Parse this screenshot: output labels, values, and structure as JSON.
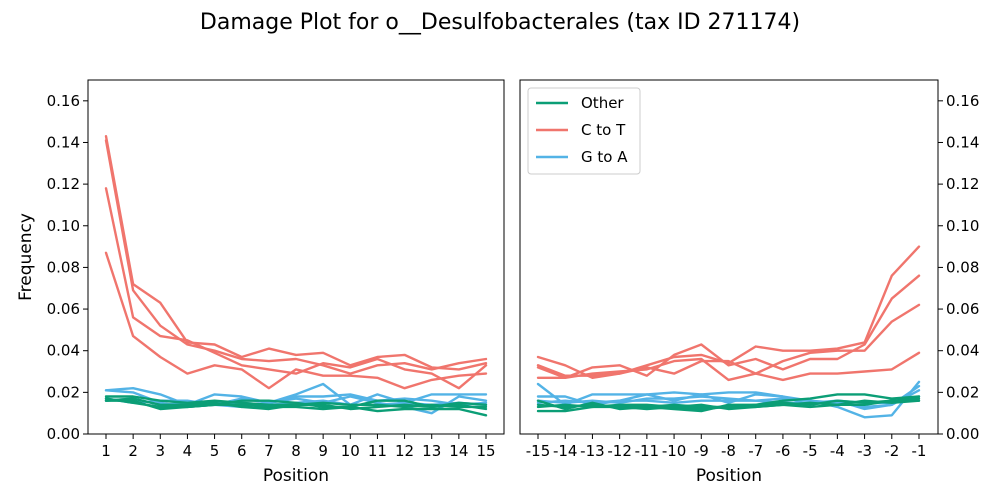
{
  "chart_data": {
    "type": "line",
    "title": "Damage Plot for o__Desulfobacterales (tax ID 271174)",
    "colors": {
      "Other": "#0b9e76",
      "C to T": "#f0756d",
      "G to A": "#53b3e6"
    },
    "legend": {
      "placement": "top-left of right panel",
      "entries": [
        "Other",
        "C to T",
        "G to A"
      ]
    },
    "panels": [
      {
        "name": "left",
        "xlabel": "Position",
        "ylabel": "Frequency",
        "x_ticks": [
          "1",
          "2",
          "3",
          "4",
          "5",
          "6",
          "7",
          "8",
          "9",
          "10",
          "11",
          "12",
          "13",
          "14",
          "15"
        ],
        "ylim": [
          0,
          0.17
        ],
        "y_ticks": [
          "0.00",
          "0.02",
          "0.04",
          "0.06",
          "0.08",
          "0.10",
          "0.12",
          "0.14",
          "0.16"
        ],
        "series": [
          {
            "group": "C to T",
            "values": [
              0.143,
              0.072,
              0.063,
              0.044,
              0.043,
              0.037,
              0.041,
              0.038,
              0.039,
              0.033,
              0.037,
              0.038,
              0.032,
              0.031,
              0.034
            ]
          },
          {
            "group": "C to T",
            "values": [
              0.141,
              0.069,
              0.052,
              0.043,
              0.04,
              0.036,
              0.035,
              0.036,
              0.033,
              0.029,
              0.033,
              0.034,
              0.031,
              0.034,
              0.036
            ]
          },
          {
            "group": "C to T",
            "values": [
              0.118,
              0.056,
              0.047,
              0.045,
              0.039,
              0.033,
              0.031,
              0.029,
              0.034,
              0.032,
              0.036,
              0.031,
              0.029,
              0.022,
              0.033
            ]
          },
          {
            "group": "C to T",
            "values": [
              0.087,
              0.047,
              0.037,
              0.029,
              0.033,
              0.031,
              0.022,
              0.031,
              0.028,
              0.028,
              0.027,
              0.022,
              0.026,
              0.028,
              0.029
            ]
          },
          {
            "group": "G to A",
            "values": [
              0.021,
              0.022,
              0.019,
              0.014,
              0.019,
              0.018,
              0.015,
              0.019,
              0.024,
              0.014,
              0.019,
              0.015,
              0.019,
              0.019,
              0.019
            ]
          },
          {
            "group": "G to A",
            "values": [
              0.021,
              0.02,
              0.015,
              0.013,
              0.014,
              0.013,
              0.015,
              0.017,
              0.015,
              0.018,
              0.015,
              0.013,
              0.01,
              0.018,
              0.016
            ]
          },
          {
            "group": "G to A",
            "values": [
              0.017,
              0.015,
              0.016,
              0.016,
              0.014,
              0.017,
              0.015,
              0.018,
              0.018,
              0.019,
              0.016,
              0.017,
              0.016,
              0.014,
              0.015
            ]
          },
          {
            "group": "G to A",
            "values": [
              0.016,
              0.017,
              0.014,
              0.015,
              0.015,
              0.015,
              0.014,
              0.015,
              0.016,
              0.014,
              0.014,
              0.015,
              0.014,
              0.015,
              0.014
            ]
          },
          {
            "group": "Other",
            "values": [
              0.018,
              0.018,
              0.016,
              0.015,
              0.016,
              0.015,
              0.014,
              0.014,
              0.015,
              0.014,
              0.014,
              0.013,
              0.014,
              0.013,
              0.013
            ]
          },
          {
            "group": "Other",
            "values": [
              0.016,
              0.016,
              0.012,
              0.013,
              0.014,
              0.016,
              0.016,
              0.015,
              0.013,
              0.013,
              0.016,
              0.016,
              0.013,
              0.014,
              0.012
            ]
          },
          {
            "group": "Other",
            "values": [
              0.017,
              0.015,
              0.013,
              0.013,
              0.014,
              0.014,
              0.013,
              0.013,
              0.012,
              0.013,
              0.011,
              0.012,
              0.012,
              0.012,
              0.009
            ]
          },
          {
            "group": "Other",
            "values": [
              0.016,
              0.017,
              0.014,
              0.014,
              0.015,
              0.013,
              0.012,
              0.014,
              0.014,
              0.012,
              0.013,
              0.014,
              0.013,
              0.015,
              0.014
            ]
          }
        ]
      },
      {
        "name": "right",
        "xlabel": "Position",
        "ylabel": "",
        "x_ticks": [
          "-15",
          "-14",
          "-13",
          "-12",
          "-11",
          "-10",
          "-9",
          "-8",
          "-7",
          "-6",
          "-5",
          "-4",
          "-3",
          "-2",
          "-1"
        ],
        "ylim": [
          0,
          0.17
        ],
        "y_ticks": [
          "0.00",
          "0.02",
          "0.04",
          "0.06",
          "0.08",
          "0.10",
          "0.12",
          "0.14",
          "0.16"
        ],
        "series": [
          {
            "group": "C to T",
            "values": [
              0.037,
              0.033,
              0.027,
              0.029,
              0.033,
              0.037,
              0.038,
              0.034,
              0.042,
              0.04,
              0.04,
              0.041,
              0.044,
              0.076,
              0.09
            ]
          },
          {
            "group": "C to T",
            "values": [
              0.032,
              0.027,
              0.032,
              0.033,
              0.028,
              0.038,
              0.043,
              0.033,
              0.036,
              0.031,
              0.036,
              0.036,
              0.043,
              0.065,
              0.076
            ]
          },
          {
            "group": "C to T",
            "values": [
              0.033,
              0.028,
              0.028,
              0.029,
              0.032,
              0.029,
              0.035,
              0.035,
              0.029,
              0.035,
              0.039,
              0.04,
              0.04,
              0.054,
              0.062
            ]
          },
          {
            "group": "C to T",
            "values": [
              0.027,
              0.027,
              0.029,
              0.03,
              0.031,
              0.035,
              0.036,
              0.026,
              0.029,
              0.026,
              0.029,
              0.029,
              0.03,
              0.031,
              0.039
            ]
          },
          {
            "group": "G to A",
            "values": [
              0.024,
              0.014,
              0.019,
              0.019,
              0.019,
              0.02,
              0.019,
              0.02,
              0.02,
              0.018,
              0.016,
              0.013,
              0.008,
              0.009,
              0.025
            ]
          },
          {
            "group": "G to A",
            "values": [
              0.018,
              0.018,
              0.014,
              0.016,
              0.019,
              0.016,
              0.019,
              0.015,
              0.019,
              0.018,
              0.014,
              0.016,
              0.012,
              0.014,
              0.023
            ]
          },
          {
            "group": "G to A",
            "values": [
              0.016,
              0.015,
              0.016,
              0.015,
              0.017,
              0.017,
              0.018,
              0.017,
              0.016,
              0.017,
              0.016,
              0.015,
              0.013,
              0.014,
              0.021
            ]
          },
          {
            "group": "G to A",
            "values": [
              0.015,
              0.016,
              0.015,
              0.016,
              0.016,
              0.015,
              0.016,
              0.016,
              0.016,
              0.015,
              0.015,
              0.016,
              0.015,
              0.015,
              0.018
            ]
          },
          {
            "group": "Other",
            "values": [
              0.016,
              0.012,
              0.015,
              0.012,
              0.013,
              0.014,
              0.013,
              0.013,
              0.014,
              0.016,
              0.017,
              0.019,
              0.019,
              0.017,
              0.018
            ]
          },
          {
            "group": "Other",
            "values": [
              0.011,
              0.011,
              0.013,
              0.013,
              0.013,
              0.012,
              0.011,
              0.014,
              0.014,
              0.015,
              0.014,
              0.016,
              0.015,
              0.016,
              0.016
            ]
          },
          {
            "group": "Other",
            "values": [
              0.013,
              0.014,
              0.013,
              0.014,
              0.014,
              0.013,
              0.014,
              0.012,
              0.013,
              0.014,
              0.015,
              0.014,
              0.016,
              0.015,
              0.016
            ]
          },
          {
            "group": "Other",
            "values": [
              0.014,
              0.013,
              0.014,
              0.013,
              0.012,
              0.013,
              0.012,
              0.013,
              0.013,
              0.014,
              0.013,
              0.014,
              0.014,
              0.016,
              0.017
            ]
          }
        ]
      }
    ]
  }
}
